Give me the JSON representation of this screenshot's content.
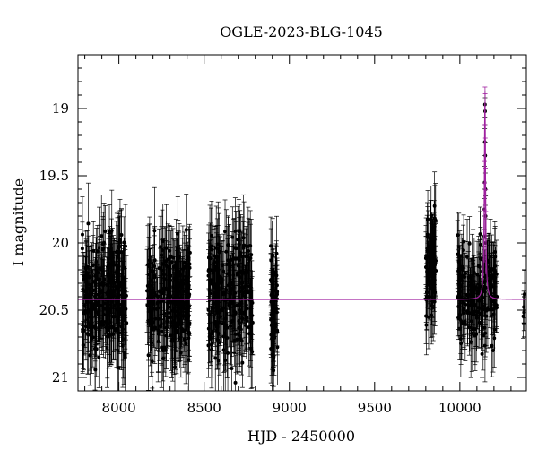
{
  "chart_data": {
    "type": "scatter",
    "title": "OGLE-2023-BLG-1045",
    "xlabel": "HJD - 2450000",
    "ylabel": "I magnitude",
    "xlim": [
      7760,
      10390
    ],
    "ylim": [
      21.1,
      18.6
    ],
    "y_inverted": true,
    "x_ticks": [
      8000,
      8500,
      9000,
      9500,
      10000
    ],
    "x_tick_labels": [
      "8000",
      "8500",
      "9000",
      "9500",
      "10000"
    ],
    "y_ticks": [
      19,
      19.5,
      20,
      20.5,
      21
    ],
    "y_tick_labels": [
      "19",
      "19.5",
      "20",
      "20.5",
      "21"
    ],
    "grid": false,
    "colors": {
      "data": "#000000",
      "model": "#a020a0"
    },
    "series": [
      {
        "type": "scatter_errorbar",
        "seasons": [
          {
            "x_start": 7785,
            "x_end": 8045,
            "mag_mean": 20.4,
            "mag_spread": 0.45,
            "err": 0.25,
            "n": 260
          },
          {
            "x_start": 8165,
            "x_end": 8420,
            "mag_mean": 20.4,
            "mag_spread": 0.45,
            "err": 0.25,
            "n": 240
          },
          {
            "x_start": 8525,
            "x_end": 8785,
            "mag_mean": 20.4,
            "mag_spread": 0.45,
            "err": 0.25,
            "n": 240
          },
          {
            "x_start": 8890,
            "x_end": 8930,
            "mag_mean": 20.45,
            "mag_spread": 0.45,
            "err": 0.22,
            "n": 60
          },
          {
            "x_start": 9800,
            "x_end": 9860,
            "mag_mean": 20.2,
            "mag_spread": 0.4,
            "err": 0.22,
            "n": 80
          },
          {
            "x_start": 9985,
            "x_end": 10220,
            "mag_mean": 20.4,
            "mag_spread": 0.4,
            "err": 0.22,
            "n": 180
          },
          {
            "x_start": 10370,
            "x_end": 10390,
            "mag_mean": 20.45,
            "mag_spread": 0.1,
            "err": 0.15,
            "n": 4
          }
        ],
        "peak_points": [
          {
            "x": 10147,
            "y": 18.97,
            "err": 0.1
          },
          {
            "x": 10148,
            "y": 19.02,
            "err": 0.1
          },
          {
            "x": 10146,
            "y": 19.25,
            "err": 0.1
          },
          {
            "x": 10149,
            "y": 19.35,
            "err": 0.1
          },
          {
            "x": 10145,
            "y": 19.55,
            "err": 0.12
          },
          {
            "x": 10150,
            "y": 19.6,
            "err": 0.12
          },
          {
            "x": 10144,
            "y": 19.75,
            "err": 0.15
          },
          {
            "x": 10151,
            "y": 19.8,
            "err": 0.15
          },
          {
            "x": 10143,
            "y": 19.95,
            "err": 0.15
          },
          {
            "x": 10152,
            "y": 20.0,
            "err": 0.18
          }
        ]
      },
      {
        "type": "model_line",
        "baseline_mag": 20.42,
        "peak_x": 10147,
        "peak_mag": 18.96,
        "tE_days": 6
      }
    ]
  }
}
